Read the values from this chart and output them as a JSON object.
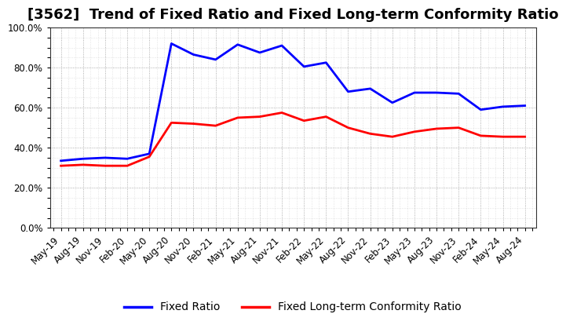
{
  "title": "[3562]  Trend of Fixed Ratio and Fixed Long-term Conformity Ratio",
  "x_labels": [
    "May-19",
    "Aug-19",
    "Nov-19",
    "Feb-20",
    "May-20",
    "Aug-20",
    "Nov-20",
    "Feb-21",
    "May-21",
    "Aug-21",
    "Nov-21",
    "Feb-22",
    "May-22",
    "Aug-22",
    "Nov-22",
    "Feb-23",
    "May-23",
    "Aug-23",
    "Nov-23",
    "Feb-24",
    "May-24",
    "Aug-24"
  ],
  "fixed_ratio": [
    33.5,
    34.5,
    35.0,
    34.5,
    37.0,
    92.0,
    86.5,
    84.0,
    91.5,
    87.5,
    91.0,
    80.5,
    82.5,
    68.0,
    69.5,
    62.5,
    67.5,
    67.5,
    67.0,
    59.0,
    60.5,
    61.0
  ],
  "fixed_long_term": [
    31.0,
    31.5,
    31.0,
    31.0,
    35.5,
    52.5,
    52.0,
    51.0,
    55.0,
    55.5,
    57.5,
    53.5,
    55.5,
    50.0,
    47.0,
    45.5,
    48.0,
    49.5,
    50.0,
    46.0,
    45.5,
    45.5
  ],
  "fixed_ratio_color": "#0000FF",
  "fixed_long_term_color": "#FF0000",
  "ylim": [
    0,
    100
  ],
  "yticks": [
    0,
    20,
    40,
    60,
    80,
    100
  ],
  "ytick_labels": [
    "0.0%",
    "20.0%",
    "40.0%",
    "60.0%",
    "80.0%",
    "100.0%"
  ],
  "legend_fixed_ratio": "Fixed Ratio",
  "legend_fixed_long_term": "Fixed Long-term Conformity Ratio",
  "background_color": "#FFFFFF",
  "plot_bg_color": "#FFFFFF",
  "grid_color": "#999999",
  "line_width": 2.0,
  "title_fontsize": 13,
  "tick_fontsize": 8.5,
  "legend_fontsize": 10
}
